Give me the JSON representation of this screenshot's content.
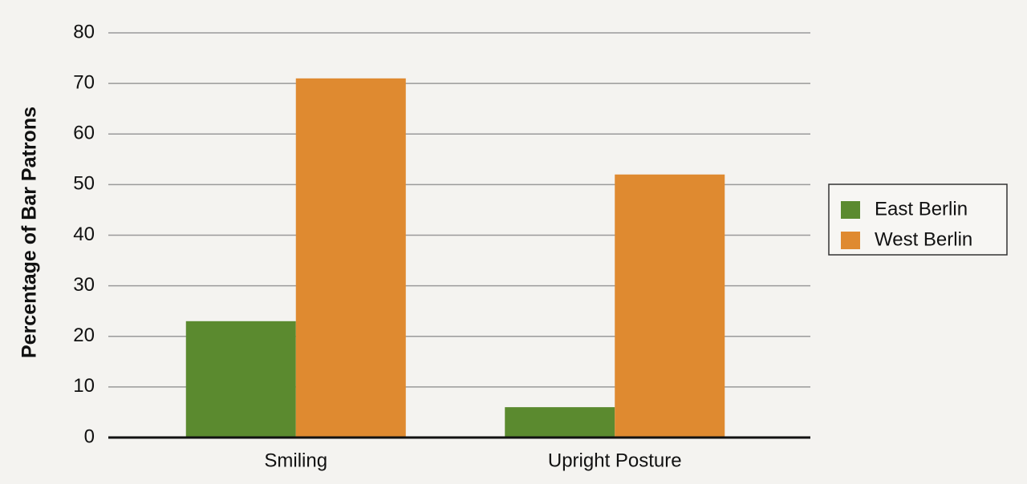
{
  "chart_data": {
    "type": "bar",
    "y_label": "Percentage of Bar Patrons",
    "categories": [
      "Smiling",
      "Upright Posture"
    ],
    "series": [
      {
        "name": "East Berlin",
        "color": "#5b8a2f",
        "values": [
          23,
          6
        ]
      },
      {
        "name": "West Berlin",
        "color": "#df8a30",
        "values": [
          71,
          52
        ]
      }
    ],
    "ylim": [
      0,
      80
    ],
    "yticks": [
      0,
      10,
      20,
      30,
      40,
      50,
      60,
      70,
      80
    ],
    "grid": true
  }
}
